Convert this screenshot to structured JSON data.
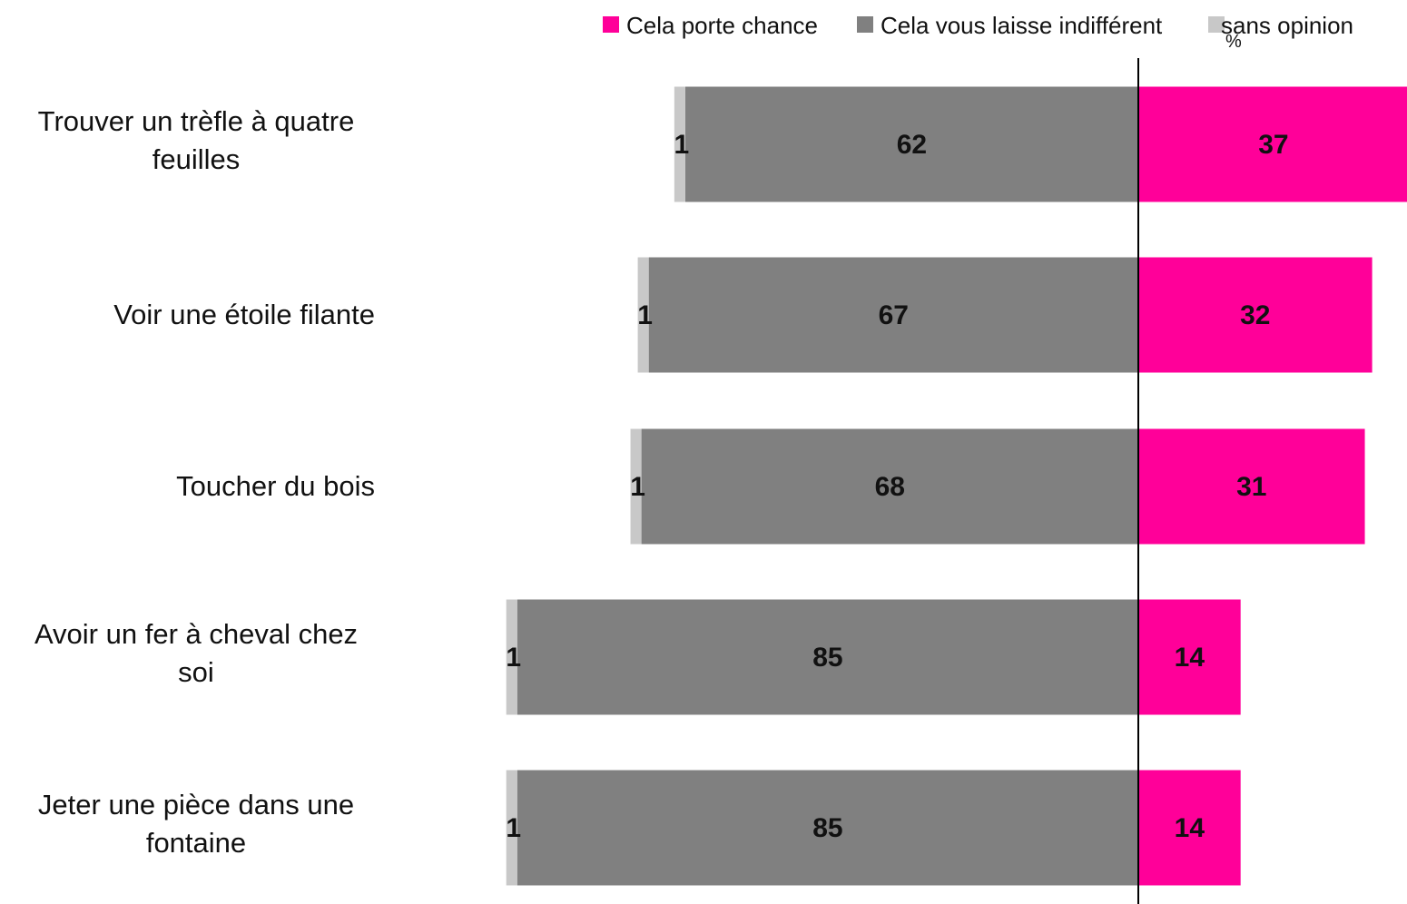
{
  "chart_data": {
    "type": "bar",
    "orientation": "horizontal-diverging",
    "unit": "%",
    "categories": [
      [
        "Trouver un trèfle à quatre",
        "feuilles"
      ],
      [
        "Voir une étoile filante"
      ],
      [
        "Toucher du bois"
      ],
      [
        "Avoir un fer à cheval chez",
        "soi"
      ],
      [
        "Jeter une pièce dans une",
        "fontaine"
      ]
    ],
    "series": [
      {
        "name": "Cela porte chance",
        "color": "#ff0099",
        "values": [
          37,
          32,
          31,
          14,
          14
        ]
      },
      {
        "name": "Cela vous laisse indifférent",
        "color": "#808080",
        "values": [
          62,
          67,
          68,
          85,
          85
        ]
      },
      {
        "name": "sans opinion",
        "color": "#c8c8c8",
        "values": [
          1,
          1,
          1,
          1,
          1
        ]
      }
    ],
    "legend_position": "top-right",
    "grid": false
  }
}
